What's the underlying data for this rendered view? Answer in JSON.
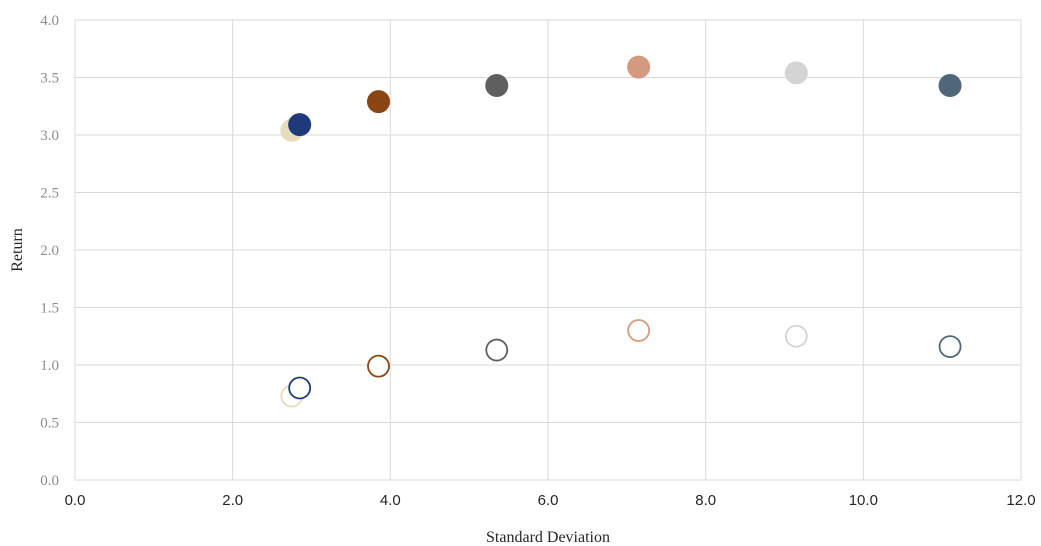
{
  "chart_data": {
    "type": "scatter",
    "title": "",
    "xlabel": "Standard Deviation",
    "ylabel": "Return",
    "xlim": [
      0,
      12
    ],
    "ylim": [
      0,
      4
    ],
    "x_ticks": [
      "0.0",
      "2.0",
      "4.0",
      "6.0",
      "8.0",
      "10.0",
      "12.0"
    ],
    "y_ticks": [
      "0.0",
      "0.5",
      "1.0",
      "1.5",
      "2.0",
      "2.5",
      "3.0",
      "3.5",
      "4.0"
    ],
    "grid": true,
    "legend": "none",
    "series": [
      {
        "color": "#e8dcbc",
        "points": [
          {
            "x": 2.75,
            "y": 3.04,
            "style": "filled"
          },
          {
            "x": 2.75,
            "y": 0.73,
            "style": "hollow"
          }
        ]
      },
      {
        "color": "#1f3a7a",
        "points": [
          {
            "x": 2.85,
            "y": 3.09,
            "style": "filled"
          },
          {
            "x": 2.85,
            "y": 0.8,
            "style": "hollow"
          }
        ]
      },
      {
        "color": "#8b4513",
        "points": [
          {
            "x": 3.85,
            "y": 3.29,
            "style": "filled"
          },
          {
            "x": 3.85,
            "y": 0.99,
            "style": "hollow"
          }
        ]
      },
      {
        "color": "#5f5f5f",
        "points": [
          {
            "x": 5.35,
            "y": 3.43,
            "style": "filled"
          },
          {
            "x": 5.35,
            "y": 1.13,
            "style": "hollow"
          }
        ]
      },
      {
        "color": "#d49a7f",
        "points": [
          {
            "x": 7.15,
            "y": 3.59,
            "style": "filled"
          },
          {
            "x": 7.15,
            "y": 1.3,
            "style": "hollow"
          }
        ]
      },
      {
        "color": "#d4d4d4",
        "points": [
          {
            "x": 9.15,
            "y": 3.54,
            "style": "filled"
          },
          {
            "x": 9.15,
            "y": 1.25,
            "style": "hollow"
          }
        ]
      },
      {
        "color": "#4f6778",
        "points": [
          {
            "x": 11.1,
            "y": 3.43,
            "style": "filled"
          },
          {
            "x": 11.1,
            "y": 1.16,
            "style": "hollow"
          }
        ]
      }
    ]
  }
}
